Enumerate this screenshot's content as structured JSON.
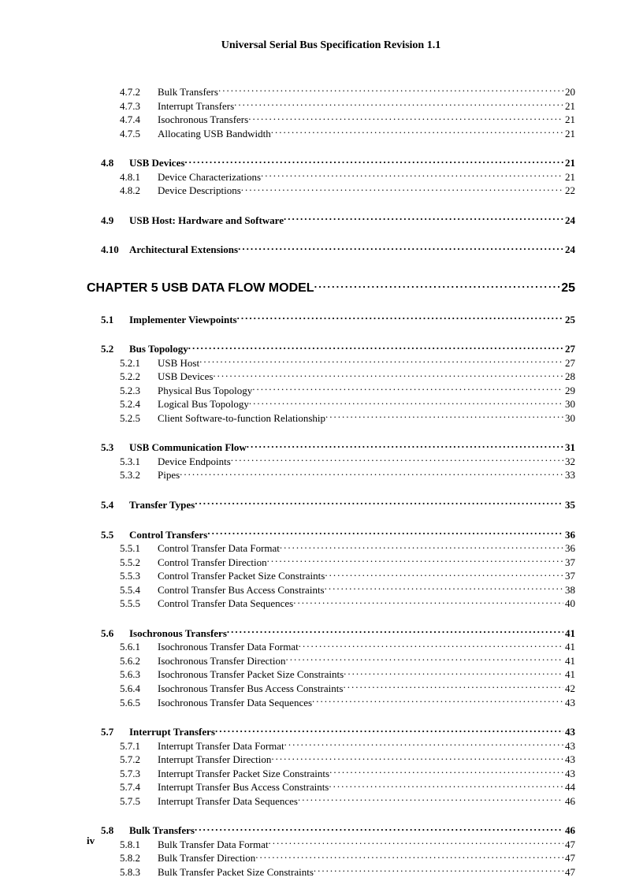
{
  "header": "Universal Serial Bus Specification Revision 1.1",
  "footer_page": "iv",
  "chapter": {
    "title": "CHAPTER 5 USB DATA FLOW MODEL",
    "page": "25"
  },
  "entries": [
    {
      "cls": "indent-sub",
      "num": "4.7.2",
      "title": "Bulk Transfers",
      "page": "20",
      "gap": ""
    },
    {
      "cls": "indent-sub",
      "num": "4.7.3",
      "title": "Interrupt Transfers",
      "page": "21",
      "gap": ""
    },
    {
      "cls": "indent-sub",
      "num": "4.7.4",
      "title": "Isochronous Transfers",
      "page": "21",
      "gap": ""
    },
    {
      "cls": "indent-sub",
      "num": "4.7.5",
      "title": "Allocating USB Bandwidth",
      "page": "21",
      "gap": ""
    },
    {
      "cls": "indent-sec",
      "num": "4.8",
      "title": "USB Devices",
      "page": "21",
      "gap": "gap-md"
    },
    {
      "cls": "indent-sub",
      "num": "4.8.1",
      "title": "Device Characterizations",
      "page": "21",
      "gap": ""
    },
    {
      "cls": "indent-sub",
      "num": "4.8.2",
      "title": "Device Descriptions",
      "page": "22",
      "gap": ""
    },
    {
      "cls": "indent-sec",
      "num": "4.9",
      "title": "USB Host:  Hardware and Software",
      "page": "24",
      "gap": "gap-md"
    },
    {
      "cls": "indent-sec",
      "num": "4.10",
      "title": "Architectural Extensions",
      "page": "24",
      "gap": "gap-md"
    },
    {
      "cls": "indent-chap",
      "num": "",
      "title": "__CHAPTER__",
      "page": "25",
      "gap": "gap-lg"
    },
    {
      "cls": "indent-sec",
      "num": "5.1",
      "title": "Implementer Viewpoints",
      "page": "25",
      "gap": "gap-md"
    },
    {
      "cls": "indent-sec",
      "num": "5.2",
      "title": "Bus Topology",
      "page": "27",
      "gap": "gap-md"
    },
    {
      "cls": "indent-sub",
      "num": "5.2.1",
      "title": "USB Host",
      "page": "27",
      "gap": ""
    },
    {
      "cls": "indent-sub",
      "num": "5.2.2",
      "title": "USB Devices",
      "page": "28",
      "gap": ""
    },
    {
      "cls": "indent-sub",
      "num": "5.2.3",
      "title": "Physical Bus Topology",
      "page": "29",
      "gap": ""
    },
    {
      "cls": "indent-sub",
      "num": "5.2.4",
      "title": "Logical Bus Topology",
      "page": "30",
      "gap": ""
    },
    {
      "cls": "indent-sub",
      "num": "5.2.5",
      "title": "Client Software-to-function Relationship",
      "page": "30",
      "gap": ""
    },
    {
      "cls": "indent-sec",
      "num": "5.3",
      "title": "USB Communication Flow",
      "page": "31",
      "gap": "gap-md"
    },
    {
      "cls": "indent-sub",
      "num": "5.3.1",
      "title": "Device Endpoints",
      "page": "32",
      "gap": ""
    },
    {
      "cls": "indent-sub",
      "num": "5.3.2",
      "title": "Pipes",
      "page": "33",
      "gap": ""
    },
    {
      "cls": "indent-sec",
      "num": "5.4",
      "title": "Transfer Types",
      "page": "35",
      "gap": "gap-md"
    },
    {
      "cls": "indent-sec",
      "num": "5.5",
      "title": "Control Transfers",
      "page": "36",
      "gap": "gap-md"
    },
    {
      "cls": "indent-sub",
      "num": "5.5.1",
      "title": "Control Transfer Data Format",
      "page": "36",
      "gap": ""
    },
    {
      "cls": "indent-sub",
      "num": "5.5.2",
      "title": "Control Transfer Direction",
      "page": "37",
      "gap": ""
    },
    {
      "cls": "indent-sub",
      "num": "5.5.3",
      "title": "Control Transfer Packet Size Constraints",
      "page": "37",
      "gap": ""
    },
    {
      "cls": "indent-sub",
      "num": "5.5.4",
      "title": "Control Transfer Bus Access Constraints",
      "page": "38",
      "gap": ""
    },
    {
      "cls": "indent-sub",
      "num": "5.5.5",
      "title": "Control Transfer Data Sequences",
      "page": "40",
      "gap": ""
    },
    {
      "cls": "indent-sec",
      "num": "5.6",
      "title": "Isochronous Transfers",
      "page": "41",
      "gap": "gap-md"
    },
    {
      "cls": "indent-sub",
      "num": "5.6.1",
      "title": "Isochronous Transfer Data Format",
      "page": "41",
      "gap": ""
    },
    {
      "cls": "indent-sub",
      "num": "5.6.2",
      "title": "Isochronous Transfer Direction",
      "page": "41",
      "gap": ""
    },
    {
      "cls": "indent-sub",
      "num": "5.6.3",
      "title": "Isochronous Transfer Packet Size Constraints",
      "page": "41",
      "gap": ""
    },
    {
      "cls": "indent-sub",
      "num": "5.6.4",
      "title": "Isochronous Transfer Bus Access Constraints",
      "page": "42",
      "gap": ""
    },
    {
      "cls": "indent-sub",
      "num": "5.6.5",
      "title": "Isochronous Transfer Data Sequences",
      "page": "43",
      "gap": ""
    },
    {
      "cls": "indent-sec",
      "num": "5.7",
      "title": "Interrupt Transfers",
      "page": "43",
      "gap": "gap-md"
    },
    {
      "cls": "indent-sub",
      "num": "5.7.1",
      "title": "Interrupt Transfer Data Format",
      "page": "43",
      "gap": ""
    },
    {
      "cls": "indent-sub",
      "num": "5.7.2",
      "title": "Interrupt Transfer Direction",
      "page": "43",
      "gap": ""
    },
    {
      "cls": "indent-sub",
      "num": "5.7.3",
      "title": "Interrupt Transfer Packet Size Constraints",
      "page": "43",
      "gap": ""
    },
    {
      "cls": "indent-sub",
      "num": "5.7.4",
      "title": "Interrupt Transfer Bus Access Constraints",
      "page": "44",
      "gap": ""
    },
    {
      "cls": "indent-sub",
      "num": "5.7.5",
      "title": "Interrupt Transfer Data Sequences",
      "page": "46",
      "gap": ""
    },
    {
      "cls": "indent-sec",
      "num": "5.8",
      "title": "Bulk Transfers",
      "page": "46",
      "gap": "gap-md"
    },
    {
      "cls": "indent-sub",
      "num": "5.8.1",
      "title": "Bulk Transfer Data Format",
      "page": "47",
      "gap": ""
    },
    {
      "cls": "indent-sub",
      "num": "5.8.2",
      "title": "Bulk Transfer Direction",
      "page": "47",
      "gap": ""
    },
    {
      "cls": "indent-sub",
      "num": "5.8.3",
      "title": "Bulk Transfer Packet Size Constraints",
      "page": "47",
      "gap": ""
    }
  ]
}
